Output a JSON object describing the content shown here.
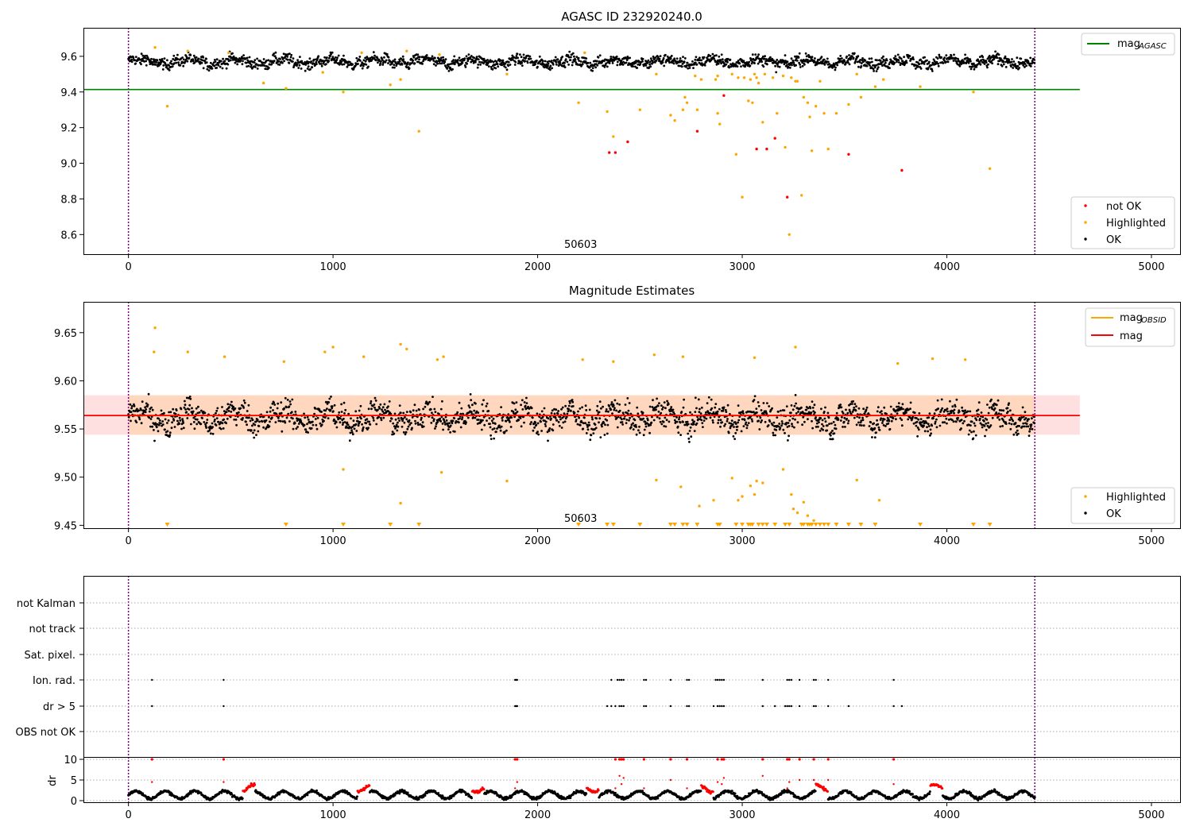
{
  "chart_data": [
    {
      "type": "scatter",
      "title": "AGASC ID 232920240.0",
      "xlim": [
        -220,
        5140
      ],
      "ylim": [
        8.49,
        9.76
      ],
      "xticks": [
        0,
        1000,
        2000,
        3000,
        4000,
        5000
      ],
      "yticks": [
        8.6,
        8.8,
        9.0,
        9.2,
        9.4,
        9.6
      ],
      "ytick_labels": [
        "8.6",
        "8.8",
        "9.0",
        "9.2",
        "9.4",
        "9.6"
      ],
      "vlines": [
        0,
        4430
      ],
      "annotation": {
        "text": "50603",
        "x": 2200,
        "y": 8.51
      },
      "reference_line": {
        "name": "mag",
        "subscript": "AGASC",
        "y": 9.414,
        "x": [
          -220,
          4650
        ],
        "color": "#008000"
      },
      "ok_points": {
        "name": "OK",
        "color": "#000000",
        "x_range": [
          0,
          4430
        ],
        "baseline": 9.57,
        "spread": 0.04
      },
      "highlighted_points": {
        "name": "Highlighted",
        "color": "#ffa500",
        "points": [
          [
            130,
            9.65
          ],
          [
            190,
            9.32
          ],
          [
            290,
            9.63
          ],
          [
            490,
            9.62
          ],
          [
            660,
            9.45
          ],
          [
            770,
            9.42
          ],
          [
            950,
            9.51
          ],
          [
            1050,
            9.4
          ],
          [
            1140,
            9.62
          ],
          [
            1280,
            9.44
          ],
          [
            1330,
            9.47
          ],
          [
            1360,
            9.63
          ],
          [
            1420,
            9.18
          ],
          [
            1520,
            9.61
          ],
          [
            1850,
            9.5
          ],
          [
            2200,
            9.34
          ],
          [
            2230,
            9.62
          ],
          [
            2340,
            9.29
          ],
          [
            2370,
            9.15
          ],
          [
            2500,
            9.3
          ],
          [
            2580,
            9.5
          ],
          [
            2650,
            9.27
          ],
          [
            2670,
            9.24
          ],
          [
            2710,
            9.3
          ],
          [
            2720,
            9.37
          ],
          [
            2730,
            9.34
          ],
          [
            2770,
            9.49
          ],
          [
            2780,
            9.3
          ],
          [
            2800,
            9.47
          ],
          [
            2870,
            9.47
          ],
          [
            2880,
            9.28
          ],
          [
            2890,
            9.22
          ],
          [
            2950,
            9.5
          ],
          [
            2970,
            9.05
          ],
          [
            2980,
            9.48
          ],
          [
            3000,
            8.81
          ],
          [
            3010,
            9.48
          ],
          [
            3030,
            9.35
          ],
          [
            3040,
            9.47
          ],
          [
            3050,
            9.34
          ],
          [
            3060,
            9.5
          ],
          [
            3070,
            9.48
          ],
          [
            3080,
            9.45
          ],
          [
            3100,
            9.23
          ],
          [
            3110,
            9.5
          ],
          [
            3150,
            9.48
          ],
          [
            3170,
            9.28
          ],
          [
            3200,
            9.49
          ],
          [
            3210,
            9.09
          ],
          [
            3230,
            8.6
          ],
          [
            3240,
            9.48
          ],
          [
            3260,
            9.46
          ],
          [
            3270,
            9.46
          ],
          [
            3290,
            8.82
          ],
          [
            3300,
            9.37
          ],
          [
            3320,
            9.34
          ],
          [
            3330,
            9.26
          ],
          [
            3340,
            9.07
          ],
          [
            3360,
            9.32
          ],
          [
            3380,
            9.46
          ],
          [
            3400,
            9.28
          ],
          [
            3420,
            9.08
          ],
          [
            3460,
            9.28
          ],
          [
            3520,
            9.33
          ],
          [
            3560,
            9.5
          ],
          [
            3580,
            9.37
          ],
          [
            3650,
            9.43
          ],
          [
            3690,
            9.47
          ],
          [
            3870,
            9.43
          ],
          [
            4130,
            9.4
          ],
          [
            4210,
            8.97
          ],
          [
            2880,
            9.49
          ]
        ]
      },
      "not_ok_points": {
        "name": "not OK",
        "color": "#ff0000",
        "points": [
          [
            2350,
            9.06
          ],
          [
            2380,
            9.06
          ],
          [
            2440,
            9.12
          ],
          [
            2780,
            9.18
          ],
          [
            2910,
            9.38
          ],
          [
            3070,
            9.08
          ],
          [
            3120,
            9.08
          ],
          [
            3160,
            9.14
          ],
          [
            3220,
            8.81
          ],
          [
            3520,
            9.05
          ],
          [
            3780,
            8.96
          ]
        ]
      },
      "legend": {
        "upper": [
          "mag_AGASC"
        ],
        "lower": [
          "not OK",
          "Highlighted",
          "OK"
        ],
        "placement_upper": "top-right",
        "placement_lower": "bottom-right"
      }
    },
    {
      "type": "scatter",
      "title": "Magnitude Estimates",
      "xlim": [
        -220,
        5140
      ],
      "ylim": [
        9.447,
        9.682
      ],
      "xticks": [
        0,
        1000,
        2000,
        3000,
        4000,
        5000
      ],
      "yticks": [
        9.45,
        9.5,
        9.55,
        9.6,
        9.65
      ],
      "ytick_labels": [
        "9.45",
        "9.50",
        "9.55",
        "9.60",
        "9.65"
      ],
      "vlines": [
        0,
        4430
      ],
      "annotation": {
        "text": "50603",
        "x": 2200,
        "y": 9.453
      },
      "mag_line": {
        "name": "mag",
        "y": 9.564,
        "color": "#ff0000",
        "band": [
          9.544,
          9.585
        ],
        "x": [
          -220,
          4650
        ]
      },
      "obsid_line": {
        "name": "mag",
        "subscript": "OBSID",
        "y": 9.564,
        "color": "#ffa500"
      },
      "ok_points": {
        "name": "OK",
        "color": "#000000",
        "x_range": [
          0,
          4430
        ],
        "baseline": 9.562,
        "spread": 0.018
      },
      "highlighted_points": {
        "name": "Highlighted",
        "color": "#ffa500",
        "points": [
          [
            130,
            9.655
          ],
          [
            125,
            9.63
          ],
          [
            290,
            9.63
          ],
          [
            470,
            9.625
          ],
          [
            760,
            9.62
          ],
          [
            960,
            9.63
          ],
          [
            1000,
            9.635
          ],
          [
            1150,
            9.625
          ],
          [
            1330,
            9.638
          ],
          [
            1360,
            9.633
          ],
          [
            1510,
            9.622
          ],
          [
            1540,
            9.625
          ],
          [
            2220,
            9.622
          ],
          [
            2370,
            9.62
          ],
          [
            2570,
            9.627
          ],
          [
            2710,
            9.625
          ],
          [
            3060,
            9.624
          ],
          [
            3260,
            9.635
          ],
          [
            3760,
            9.618
          ],
          [
            3930,
            9.623
          ],
          [
            4090,
            9.622
          ],
          [
            1050,
            9.508
          ],
          [
            1530,
            9.505
          ],
          [
            1330,
            9.473
          ],
          [
            1850,
            9.496
          ],
          [
            2580,
            9.497
          ],
          [
            2700,
            9.49
          ],
          [
            2790,
            9.47
          ],
          [
            2860,
            9.476
          ],
          [
            2950,
            9.499
          ],
          [
            2980,
            9.476
          ],
          [
            3000,
            9.48
          ],
          [
            3040,
            9.491
          ],
          [
            3060,
            9.482
          ],
          [
            3070,
            9.496
          ],
          [
            3100,
            9.494
          ],
          [
            3200,
            9.508
          ],
          [
            3240,
            9.482
          ],
          [
            3250,
            9.467
          ],
          [
            3270,
            9.463
          ],
          [
            3300,
            9.474
          ],
          [
            3320,
            9.46
          ],
          [
            3350,
            9.455
          ],
          [
            3560,
            9.497
          ],
          [
            3670,
            9.476
          ]
        ]
      },
      "clipped_marker_x": [
        190,
        770,
        1050,
        1280,
        1420,
        2200,
        2340,
        2370,
        2500,
        2650,
        2670,
        2710,
        2730,
        2780,
        2880,
        2890,
        2970,
        3000,
        3030,
        3040,
        3050,
        3080,
        3100,
        3120,
        3160,
        3210,
        3230,
        3290,
        3300,
        3320,
        3330,
        3340,
        3360,
        3380,
        3400,
        3420,
        3460,
        3520,
        3580,
        3650,
        3870,
        4130,
        4210
      ],
      "legend": {
        "upper": [
          "mag_OBSID",
          "mag"
        ],
        "lower": [
          "Highlighted",
          "OK"
        ],
        "placement_upper": "top-right",
        "placement_lower": "bottom-right"
      }
    },
    {
      "type": "scatter",
      "xlim": [
        -220,
        5140
      ],
      "xticks": [
        0,
        1000,
        2000,
        3000,
        4000,
        5000
      ],
      "vlines": [
        0,
        4430
      ],
      "flag_rows": [
        "not Kalman",
        "not track",
        "Sat. pixel.",
        "Ion. rad.",
        "dr > 5",
        "OBS not OK"
      ],
      "flag_points": {
        "Ion. rad.": [
          115,
          465,
          1890,
          1895,
          1900,
          2360,
          2390,
          2400,
          2410,
          2420,
          2520,
          2530,
          2650,
          2730,
          2740,
          2870,
          2880,
          2890,
          2900,
          2910,
          3100,
          3220,
          3230,
          3240,
          3280,
          3350,
          3360,
          3420,
          3740
        ],
        "dr > 5": [
          115,
          465,
          1890,
          1895,
          1900,
          2340,
          2360,
          2380,
          2400,
          2410,
          2420,
          2520,
          2530,
          2650,
          2730,
          2740,
          2860,
          2880,
          2890,
          2900,
          2910,
          3100,
          3160,
          3210,
          3220,
          3230,
          3240,
          3280,
          3350,
          3360,
          3420,
          3520,
          3740,
          3780
        ]
      },
      "dr": {
        "ylabel": "dr",
        "yticks": [
          0,
          5,
          10
        ],
        "ylim": [
          -0.7,
          10.5
        ],
        "baseline": 1.4,
        "spike_x": [
          115,
          465,
          1890,
          1900,
          2380,
          2400,
          2410,
          2420,
          2520,
          2650,
          2730,
          2880,
          2900,
          2910,
          3100,
          3220,
          3230,
          3280,
          3350,
          3420,
          3740
        ],
        "spike_value": 10
      }
    }
  ]
}
